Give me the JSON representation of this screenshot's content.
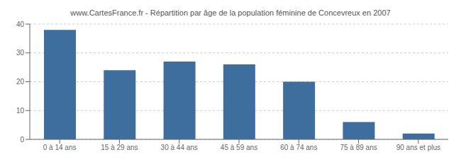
{
  "chart_data": {
    "type": "bar",
    "title": "www.CartesFrance.fr - Répartition par âge de la population féminine de Concevreux en 2007",
    "categories": [
      "0 à 14 ans",
      "15 à 29 ans",
      "30 à 44 ans",
      "45 à 59 ans",
      "60 à 74 ans",
      "75 à 89 ans",
      "90 ans et plus"
    ],
    "values": [
      38,
      24,
      27,
      26,
      20,
      6,
      2
    ],
    "color": "#3d6e9e",
    "ylim": [
      0,
      40
    ],
    "yticks": [
      0,
      10,
      20,
      30,
      40
    ],
    "grid": true
  }
}
